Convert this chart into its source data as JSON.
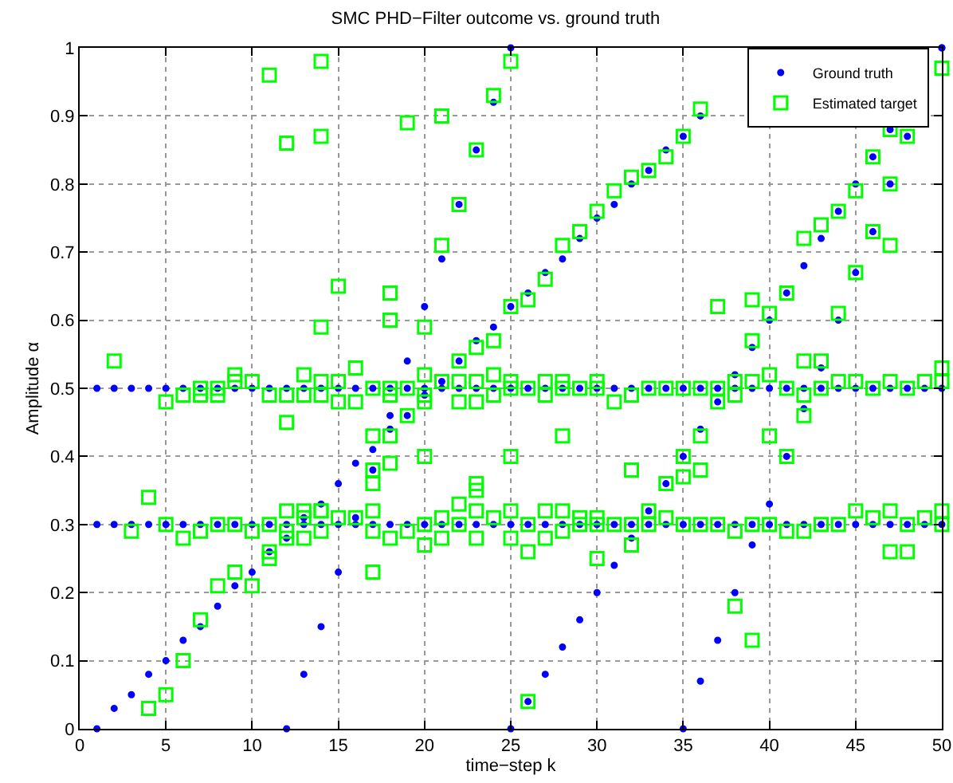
{
  "chart_data": {
    "type": "scatter",
    "title": "SMC PHD−Filter outcome vs. ground truth",
    "xlabel": "time−step k",
    "ylabel": "Amplitude α",
    "xlim": [
      0,
      50
    ],
    "xticks": [
      0,
      5,
      10,
      15,
      20,
      25,
      30,
      35,
      40,
      45,
      50
    ],
    "ylim": [
      0,
      1
    ],
    "yticks": [
      0,
      0.1,
      0.2,
      0.3,
      0.4,
      0.5,
      0.6,
      0.7,
      0.8,
      0.9,
      1
    ],
    "grid": true,
    "legend": "top right",
    "series": [
      {
        "name": "Ground truth",
        "color": "#0000ff",
        "marker": "circle",
        "x": [
          1,
          2,
          3,
          4,
          5,
          6,
          7,
          8,
          9,
          10,
          11,
          12,
          13,
          14,
          15,
          16,
          17,
          18,
          19,
          20,
          21,
          22,
          23,
          24,
          25,
          26,
          27,
          28,
          29,
          30,
          31,
          32,
          33,
          34,
          35,
          36,
          37,
          38,
          39,
          40,
          41,
          42,
          43,
          44,
          45,
          46,
          47,
          48,
          49,
          50,
          1,
          2,
          3,
          4,
          5,
          6,
          7,
          8,
          9,
          10,
          11,
          12,
          13,
          14,
          15,
          16,
          17,
          18,
          19,
          20,
          21,
          22,
          23,
          24,
          25,
          26,
          27,
          28,
          29,
          30,
          31,
          32,
          33,
          34,
          35,
          36,
          37,
          38,
          39,
          40,
          41,
          42,
          43,
          44,
          45,
          46,
          47,
          48,
          49,
          50,
          1,
          2,
          3,
          4,
          5,
          6,
          7,
          8,
          9,
          10,
          11,
          12,
          13,
          14,
          15,
          16,
          17,
          18,
          19,
          20,
          21,
          22,
          23,
          24,
          25,
          26,
          27,
          28,
          29,
          30,
          31,
          32,
          33,
          34,
          35,
          36,
          12,
          13,
          14,
          15,
          16,
          17,
          18,
          19,
          20,
          21,
          22,
          23,
          24,
          25,
          25,
          26,
          27,
          28,
          29,
          30,
          31,
          32,
          33,
          34,
          35,
          36,
          37,
          38,
          39,
          40,
          41,
          42,
          43,
          44,
          45,
          46,
          47,
          50,
          35,
          36,
          37,
          38,
          39,
          40,
          41,
          42,
          43,
          44,
          45,
          46,
          47,
          48,
          50
        ],
        "values": [
          0.5,
          0.5,
          0.5,
          0.5,
          0.5,
          0.5,
          0.5,
          0.5,
          0.5,
          0.5,
          0.5,
          0.5,
          0.5,
          0.5,
          0.5,
          0.5,
          0.5,
          0.5,
          0.5,
          0.5,
          0.5,
          0.5,
          0.5,
          0.5,
          0.5,
          0.5,
          0.5,
          0.5,
          0.5,
          0.5,
          0.5,
          0.5,
          0.5,
          0.5,
          0.5,
          0.5,
          0.5,
          0.5,
          0.5,
          0.5,
          0.5,
          0.5,
          0.5,
          0.5,
          0.5,
          0.5,
          0.5,
          0.5,
          0.5,
          0.5,
          0.3,
          0.3,
          0.3,
          0.3,
          0.3,
          0.3,
          0.3,
          0.3,
          0.3,
          0.3,
          0.3,
          0.3,
          0.3,
          0.3,
          0.3,
          0.3,
          0.3,
          0.3,
          0.3,
          0.3,
          0.3,
          0.3,
          0.3,
          0.3,
          0.3,
          0.3,
          0.3,
          0.3,
          0.3,
          0.3,
          0.3,
          0.3,
          0.3,
          0.3,
          0.3,
          0.3,
          0.3,
          0.3,
          0.3,
          0.3,
          0.3,
          0.3,
          0.3,
          0.3,
          0.3,
          0.3,
          0.3,
          0.3,
          0.3,
          0.3,
          0,
          0.03,
          0.05,
          0.08,
          0.1,
          0.13,
          0.15,
          0.18,
          0.21,
          0.23,
          0.26,
          0.28,
          0.31,
          0.33,
          0.36,
          0.39,
          0.41,
          0.44,
          0.46,
          0.49,
          0.51,
          0.54,
          0.57,
          0.59,
          0.62,
          0.64,
          0.67,
          0.69,
          0.72,
          0.75,
          0.77,
          0.8,
          0.82,
          0.85,
          0.87,
          0.9,
          0,
          0.08,
          0.15,
          0.23,
          0.31,
          0.38,
          0.46,
          0.54,
          0.62,
          0.69,
          0.77,
          0.85,
          0.92,
          1,
          0,
          0.04,
          0.08,
          0.12,
          0.16,
          0.2,
          0.24,
          0.28,
          0.32,
          0.36,
          0.4,
          0.44,
          0.48,
          0.52,
          0.56,
          0.6,
          0.64,
          0.68,
          0.72,
          0.76,
          0.8,
          0.84,
          0.88,
          1,
          0,
          0.07,
          0.13,
          0.2,
          0.27,
          0.33,
          0.4,
          0.47,
          0.53,
          0.6,
          0.67,
          0.73,
          0.8,
          0.87,
          1
        ]
      },
      {
        "name": "Estimated target",
        "color": "#00ff00",
        "marker": "square",
        "x": [
          2,
          3,
          4,
          4,
          5,
          5,
          5,
          6,
          6,
          6,
          7,
          7,
          7,
          7,
          8,
          8,
          8,
          8,
          9,
          9,
          9,
          9,
          10,
          10,
          10,
          11,
          11,
          11,
          11,
          11,
          12,
          12,
          12,
          12,
          12,
          12,
          13,
          13,
          13,
          13,
          13,
          14,
          14,
          14,
          14,
          14,
          14,
          14,
          14,
          15,
          15,
          15,
          15,
          16,
          16,
          16,
          17,
          17,
          17,
          17,
          17,
          17,
          17,
          18,
          18,
          18,
          18,
          18,
          18,
          18,
          19,
          19,
          19,
          19,
          20,
          20,
          20,
          20,
          20,
          20,
          20,
          21,
          21,
          21,
          21,
          21,
          22,
          22,
          22,
          22,
          22,
          22,
          23,
          23,
          23,
          23,
          23,
          23,
          23,
          23,
          24,
          24,
          24,
          24,
          24,
          25,
          25,
          25,
          25,
          25,
          25,
          25,
          26,
          26,
          26,
          26,
          26,
          27,
          27,
          27,
          27,
          27,
          28,
          28,
          28,
          28,
          28,
          28,
          29,
          29,
          29,
          29,
          30,
          30,
          30,
          30,
          30,
          30,
          31,
          31,
          31,
          32,
          32,
          32,
          32,
          32,
          33,
          33,
          33,
          33,
          34,
          34,
          34,
          34,
          35,
          35,
          35,
          35,
          35,
          36,
          36,
          36,
          36,
          36,
          37,
          37,
          37,
          37,
          38,
          38,
          38,
          38,
          39,
          39,
          39,
          39,
          39,
          40,
          40,
          40,
          40,
          41,
          41,
          41,
          41,
          42,
          42,
          42,
          42,
          42,
          43,
          43,
          43,
          43,
          44,
          44,
          44,
          44,
          45,
          45,
          45,
          45,
          46,
          46,
          46,
          46,
          47,
          47,
          47,
          47,
          47,
          47,
          48,
          48,
          48,
          48,
          49,
          49,
          50,
          50,
          50,
          50,
          50
        ],
        "values": [
          0.54,
          0.29,
          0.34,
          0.03,
          0.48,
          0.3,
          0.05,
          0.49,
          0.28,
          0.1,
          0.5,
          0.49,
          0.29,
          0.16,
          0.5,
          0.49,
          0.3,
          0.21,
          0.52,
          0.51,
          0.3,
          0.23,
          0.51,
          0.29,
          0.21,
          0.96,
          0.49,
          0.3,
          0.26,
          0.25,
          0.86,
          0.49,
          0.45,
          0.32,
          0.29,
          0.28,
          0.52,
          0.49,
          0.32,
          0.31,
          0.28,
          0.98,
          0.87,
          0.59,
          0.51,
          0.49,
          0.32,
          0.32,
          0.29,
          0.65,
          0.51,
          0.48,
          0.31,
          0.53,
          0.48,
          0.31,
          0.5,
          0.43,
          0.38,
          0.36,
          0.32,
          0.29,
          0.23,
          0.64,
          0.6,
          0.5,
          0.49,
          0.43,
          0.39,
          0.28,
          0.89,
          0.5,
          0.46,
          0.29,
          0.59,
          0.52,
          0.49,
          0.48,
          0.4,
          0.3,
          0.27,
          0.9,
          0.71,
          0.51,
          0.31,
          0.28,
          0.77,
          0.54,
          0.51,
          0.48,
          0.33,
          0.3,
          0.85,
          0.56,
          0.51,
          0.48,
          0.36,
          0.35,
          0.32,
          0.28,
          0.93,
          0.57,
          0.52,
          0.49,
          0.31,
          0.98,
          0.62,
          0.51,
          0.5,
          0.4,
          0.32,
          0.28,
          0.63,
          0.5,
          0.3,
          0.26,
          0.04,
          0.66,
          0.51,
          0.49,
          0.32,
          0.28,
          0.71,
          0.51,
          0.5,
          0.43,
          0.32,
          0.29,
          0.73,
          0.5,
          0.31,
          0.3,
          0.76,
          0.51,
          0.5,
          0.31,
          0.3,
          0.25,
          0.79,
          0.48,
          0.3,
          0.81,
          0.49,
          0.38,
          0.3,
          0.27,
          0.82,
          0.5,
          0.32,
          0.3,
          0.84,
          0.5,
          0.36,
          0.31,
          0.87,
          0.5,
          0.4,
          0.37,
          0.3,
          0.91,
          0.5,
          0.43,
          0.38,
          0.3,
          0.62,
          0.5,
          0.48,
          0.3,
          0.51,
          0.49,
          0.29,
          0.18,
          0.63,
          0.57,
          0.51,
          0.3,
          0.13,
          0.61,
          0.52,
          0.43,
          0.3,
          0.64,
          0.5,
          0.4,
          0.29,
          0.72,
          0.54,
          0.49,
          0.46,
          0.29,
          0.74,
          0.54,
          0.5,
          0.3,
          0.76,
          0.61,
          0.51,
          0.3,
          0.79,
          0.67,
          0.51,
          0.32,
          0.84,
          0.73,
          0.5,
          0.31,
          0.88,
          0.8,
          0.71,
          0.51,
          0.32,
          0.26,
          0.87,
          0.5,
          0.3,
          0.26,
          0.51,
          0.31,
          0.97,
          0.53,
          0.51,
          0.32,
          0.3
        ]
      }
    ]
  }
}
